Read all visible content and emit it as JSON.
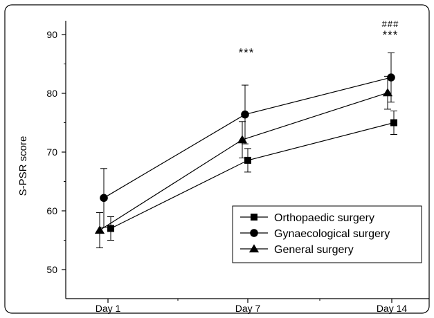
{
  "chart_data": {
    "type": "line",
    "title": "",
    "xlabel": "",
    "ylabel": "S-PSR score",
    "categories": [
      "Day 1",
      "Day 7",
      "Day 14"
    ],
    "ylim": [
      45,
      93
    ],
    "yticks": [
      50,
      60,
      70,
      80,
      90
    ],
    "grid": false,
    "legend_position": "lower-right",
    "series": [
      {
        "name": "Orthopaedic surgery",
        "marker": "square",
        "values": [
          57.0,
          68.6,
          75.0
        ],
        "error": [
          2.0,
          2.0,
          2.0
        ],
        "color": "#000000"
      },
      {
        "name": "Gynaecological surgery",
        "marker": "circle",
        "values": [
          62.2,
          76.4,
          82.7
        ],
        "error": [
          5.0,
          5.0,
          4.2
        ],
        "color": "#000000"
      },
      {
        "name": "General surgery",
        "marker": "triangle",
        "values": [
          56.7,
          72.1,
          80.1
        ],
        "error": [
          3.0,
          3.1,
          2.8
        ],
        "color": "#000000"
      }
    ],
    "annotations": [
      {
        "category": "Day 7",
        "text": "***",
        "y": 87.5
      },
      {
        "category": "Day 14",
        "text": "***",
        "y": 90.5
      },
      {
        "category": "Day 14",
        "text": "###",
        "y": 92.5
      }
    ]
  }
}
